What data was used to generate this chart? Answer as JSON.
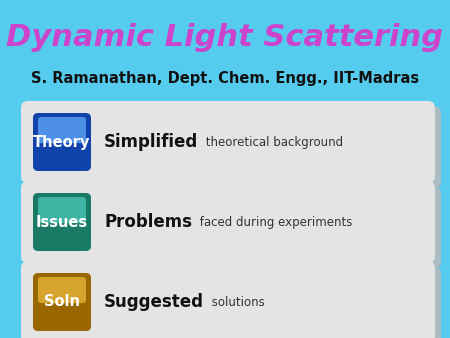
{
  "title": "Dynamic Light Scattering",
  "title_color": "#CC44CC",
  "title_fontsize": 22,
  "subtitle": "S. Ramanathan, Dept. Chem. Engg., IIT-Madras",
  "subtitle_fontsize": 10.5,
  "background_color": "#55CCEE",
  "card_bg_color": "#E4E4E4",
  "card_shadow_color": "#BBBBBB",
  "rows": [
    {
      "badge_label": "Theory",
      "badge_color_top": "#5599EE",
      "badge_color_bottom": "#1144AA",
      "bold_text": "Simplified",
      "light_text": " theoretical background",
      "bold_fontsize": 12,
      "light_fontsize": 8.5
    },
    {
      "badge_label": "Issues",
      "badge_color_top": "#44BBAA",
      "badge_color_bottom": "#1A7A66",
      "bold_text": "Problems",
      "light_text": " faced during experiments",
      "bold_fontsize": 12,
      "light_fontsize": 8.5
    },
    {
      "badge_label": "Soln",
      "badge_color_top": "#DDAA33",
      "badge_color_bottom": "#996600",
      "bold_text": "Suggested",
      "light_text": " solutions",
      "bold_fontsize": 12,
      "light_fontsize": 8.5
    }
  ]
}
